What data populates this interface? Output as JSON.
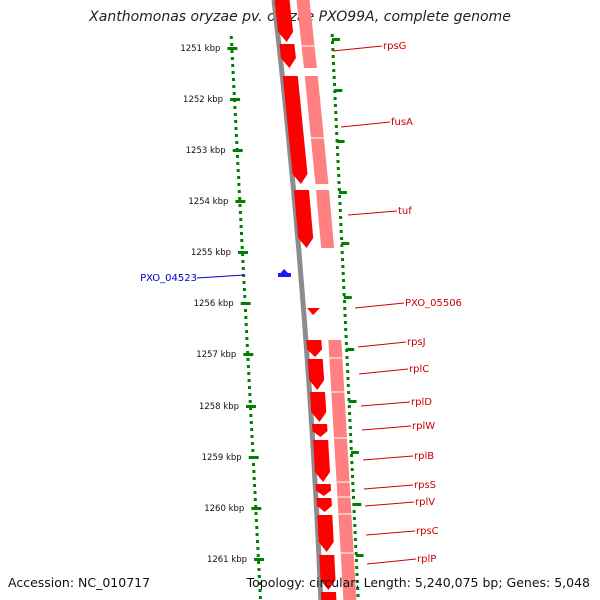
{
  "map": {
    "title": "Xanthomonas oryzae pv. oryzae PXO99A, complete genome",
    "accession": "Accession: NC_010717",
    "summary": "Topology: circular; Length: 5,240,075 bp; Genes: 5,048"
  },
  "ruler": {
    "unit": "kbp",
    "ticks": [
      1251,
      1252,
      1253,
      1254,
      1255,
      1256,
      1257,
      1258,
      1259,
      1260,
      1261
    ]
  },
  "colors": {
    "gene_primary": "#ff0000",
    "gene_secondary": "#ff8080",
    "gene_minus": "#1a1aff",
    "label_plus": "#cc0000",
    "label_minus": "#0000cc",
    "tick": "#008000",
    "backbone": "#8c8c8c",
    "edge_feature": "#f4a020"
  },
  "genes": [
    {
      "name": "rpsG",
      "strand": "+"
    },
    {
      "name": "fusA",
      "strand": "+"
    },
    {
      "name": "tuf",
      "strand": "+"
    },
    {
      "name": "PXO_04523",
      "strand": "-"
    },
    {
      "name": "PXO_05506",
      "strand": "+"
    },
    {
      "name": "rpsJ",
      "strand": "+"
    },
    {
      "name": "rplC",
      "strand": "+"
    },
    {
      "name": "rplD",
      "strand": "+"
    },
    {
      "name": "rplW",
      "strand": "+"
    },
    {
      "name": "rplB",
      "strand": "+"
    },
    {
      "name": "rpsS",
      "strand": "+"
    },
    {
      "name": "rplV",
      "strand": "+"
    },
    {
      "name": "rpsC",
      "strand": "+"
    },
    {
      "name": "rplP",
      "strand": "+"
    }
  ]
}
